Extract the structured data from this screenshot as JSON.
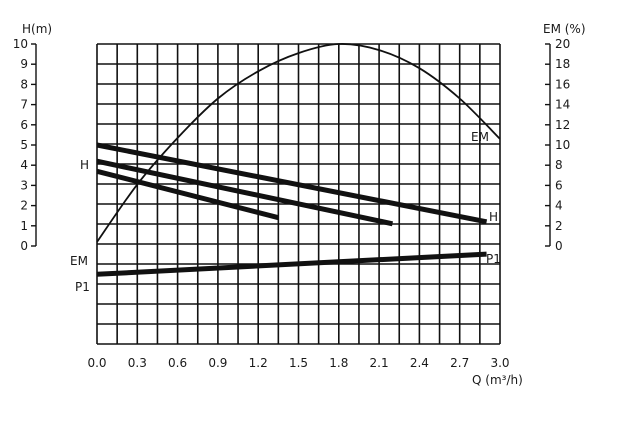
{
  "chart_data": {
    "type": "line",
    "x_axis": {
      "label": "Q (m³/h)",
      "ticks": [
        "0.0",
        "0.3",
        "0.6",
        "0.9",
        "1.2",
        "1.5",
        "1.8",
        "2.1",
        "2.4",
        "2.7",
        "3.0"
      ],
      "range": [
        0,
        3.0
      ]
    },
    "y_axis_left": {
      "label": "H(m)",
      "ticks": [
        "0",
        "1",
        "2",
        "3",
        "4",
        "5",
        "6",
        "7",
        "8",
        "9",
        "10"
      ],
      "range": [
        0,
        10
      ]
    },
    "y_axis_right": {
      "label": "EM (%)",
      "ticks": [
        "0",
        "2",
        "4",
        "6",
        "8",
        "10",
        "12",
        "14",
        "16",
        "18",
        "20"
      ],
      "range": [
        0,
        20
      ]
    },
    "grid": true,
    "series": [
      {
        "name": "H",
        "axis": "left",
        "points": [
          [
            0,
            5.0
          ],
          [
            2.9,
            1.2
          ]
        ]
      },
      {
        "name": "",
        "axis": "left",
        "points": [
          [
            0,
            4.2
          ],
          [
            2.2,
            1.1
          ]
        ]
      },
      {
        "name": "",
        "axis": "left",
        "points": [
          [
            0,
            3.7
          ],
          [
            1.35,
            1.4
          ]
        ]
      },
      {
        "name": "EM",
        "axis": "right",
        "points": [
          [
            0,
            0.4
          ],
          [
            0.3,
            6.1
          ],
          [
            0.6,
            10.7
          ],
          [
            0.9,
            14.6
          ],
          [
            1.2,
            17.3
          ],
          [
            1.5,
            19.1
          ],
          [
            1.8,
            20.0
          ],
          [
            2.1,
            19.4
          ],
          [
            2.4,
            17.6
          ],
          [
            2.7,
            14.6
          ],
          [
            3.0,
            10.6
          ]
        ]
      },
      {
        "name": "P1",
        "axis": "left",
        "points": [
          [
            0,
            -1.4
          ],
          [
            2.9,
            -0.4
          ]
        ]
      }
    ],
    "curve_labels": {
      "left_h": "H",
      "left_em": "EM",
      "left_p1": "P1",
      "right_em": "EM",
      "right_h": "H",
      "right_p1": "P1"
    }
  }
}
